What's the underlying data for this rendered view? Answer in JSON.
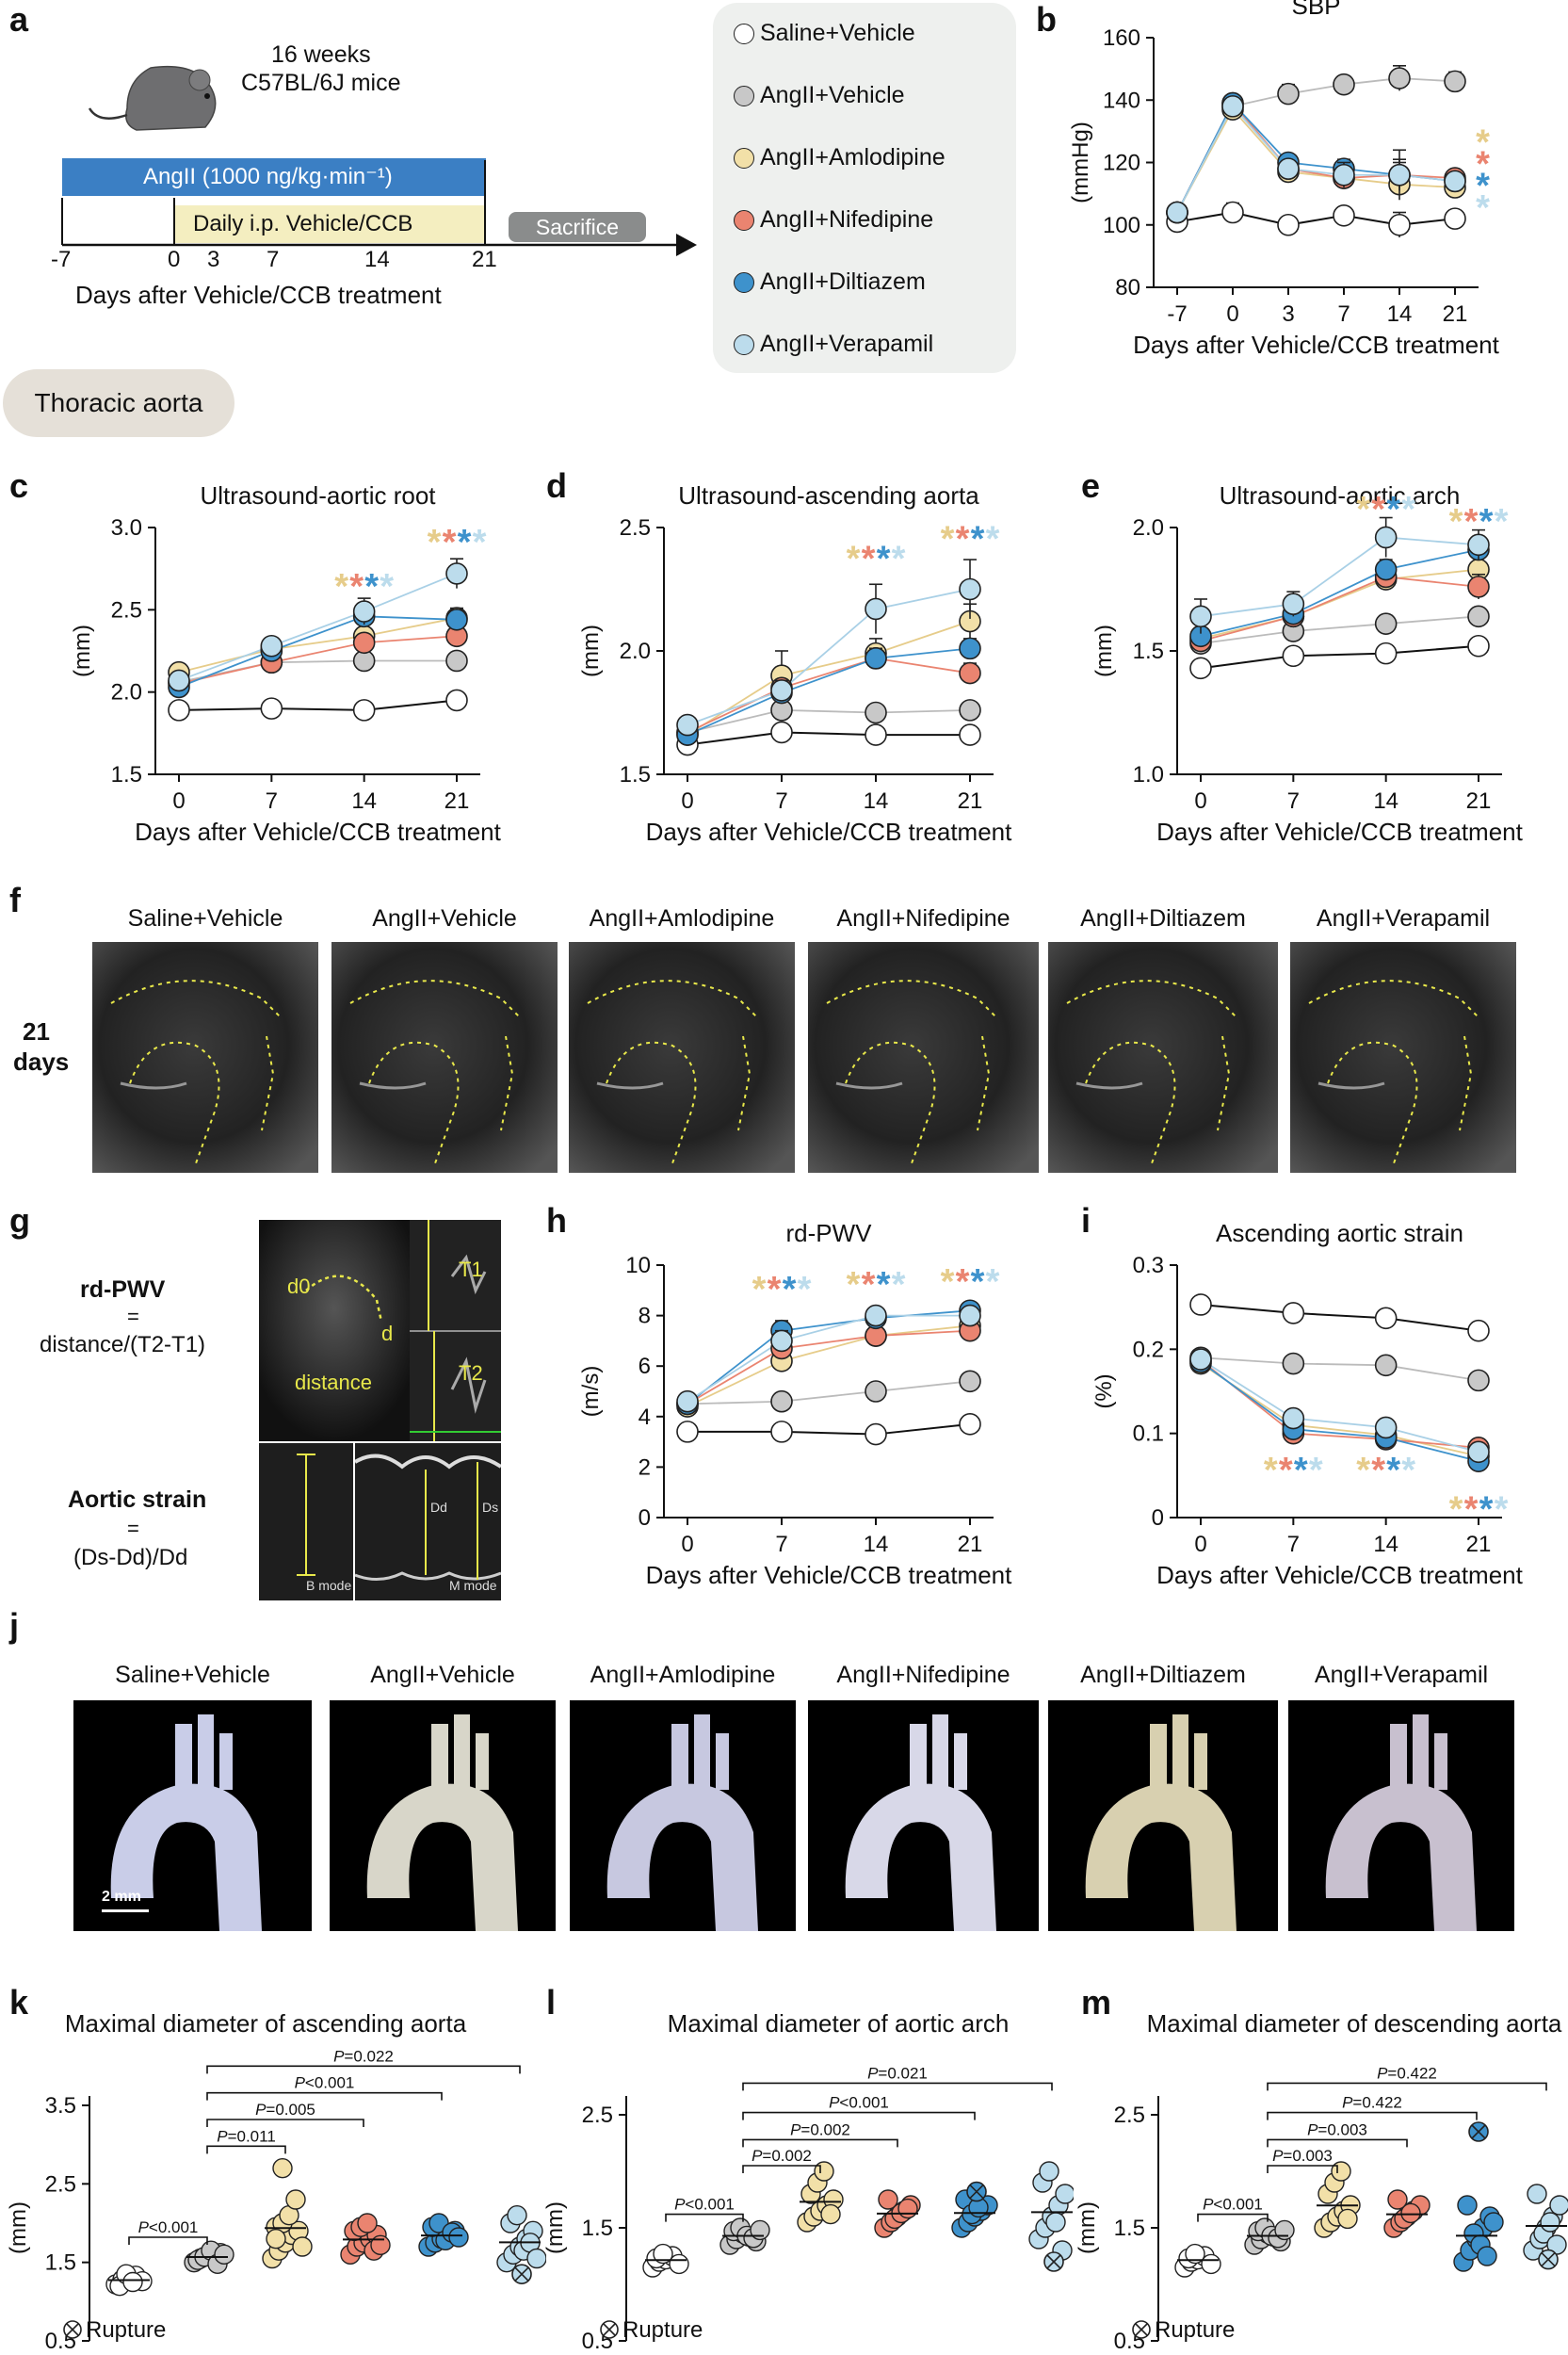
{
  "labels": {
    "a": "a",
    "b": "b",
    "c": "c",
    "d": "d",
    "e": "e",
    "f": "f",
    "g": "g",
    "h": "h",
    "i": "i",
    "j": "j",
    "k": "k",
    "l": "l",
    "m": "m"
  },
  "panel_a": {
    "mice_line1": "16 weeks",
    "mice_line2": "C57BL/6J mice",
    "angii_bar": "AngII (1000 ng/kg·min⁻¹)",
    "daily_bar": "Daily i.p. Vehicle/CCB",
    "sacrifice": "Sacrifice",
    "ticks": [
      "-7",
      "0",
      "3",
      "7",
      "14",
      "21"
    ],
    "xlabel": "Days after Vehicle/CCB treatment",
    "section": "Thoracic aorta"
  },
  "groups": [
    {
      "name": "Saline+Vehicle",
      "color": "#ffffff"
    },
    {
      "name": "AngII+Vehicle",
      "color": "#c8c8c8"
    },
    {
      "name": "AngII+Amlodipine",
      "color": "#f2e0a8"
    },
    {
      "name": "AngII+Nifedipine",
      "color": "#ea8470"
    },
    {
      "name": "AngII+Diltiazem",
      "color": "#3e92cc"
    },
    {
      "name": "AngII+Verapamil",
      "color": "#bcdcec"
    }
  ],
  "star_colors": [
    "#e6cc8a",
    "#ea8470",
    "#3e92cc",
    "#bcdcec"
  ],
  "chart_data": [
    {
      "id": "b",
      "type": "line",
      "title": "SBP",
      "ylabel": "(mmHg)",
      "xlabel": "Days after Vehicle/CCB treatment",
      "categories": [
        "-7",
        "0",
        "3",
        "7",
        "14",
        "21"
      ],
      "ylim": [
        80,
        160
      ],
      "yticks": [
        80,
        100,
        120,
        140,
        160
      ],
      "series": [
        [
          101,
          104,
          100,
          103,
          100,
          102
        ],
        [
          104,
          138,
          142,
          145,
          147,
          146
        ],
        [
          104,
          137,
          117,
          115,
          113,
          112
        ],
        [
          104,
          139,
          118,
          115,
          116,
          115
        ],
        [
          104,
          139,
          120,
          118,
          116,
          114
        ],
        [
          104,
          138,
          118,
          116,
          116,
          114
        ]
      ],
      "err": [
        [
          2,
          3,
          1,
          2,
          4,
          2
        ],
        [
          2,
          2,
          3,
          2,
          4,
          3
        ],
        [
          2,
          3,
          2,
          2,
          2,
          2
        ],
        [
          2,
          2,
          3,
          2,
          5,
          2
        ],
        [
          2,
          2,
          2,
          3,
          8,
          2
        ],
        [
          2,
          2,
          2,
          4,
          4,
          2
        ]
      ],
      "stars": [
        {
          "x": 5.5,
          "y": 127,
          "c": [
            0
          ]
        },
        {
          "x": 5.5,
          "y": 120,
          "c": [
            1
          ]
        },
        {
          "x": 5.5,
          "y": 113,
          "c": [
            2
          ]
        },
        {
          "x": 5.5,
          "y": 106,
          "c": [
            3
          ]
        }
      ]
    },
    {
      "id": "c",
      "type": "line",
      "title": "Ultrasound-aortic root",
      "ylabel": "(mm)",
      "xlabel": "Days after Vehicle/CCB treatment",
      "categories": [
        "0",
        "7",
        "14",
        "21"
      ],
      "ylim": [
        1.5,
        3.0
      ],
      "yticks": [
        "1.5",
        "2.0",
        "2.5",
        "3.0"
      ],
      "series": [
        [
          1.89,
          1.9,
          1.89,
          1.95
        ],
        [
          2.06,
          2.18,
          2.19,
          2.19
        ],
        [
          2.12,
          2.26,
          2.34,
          2.45
        ],
        [
          2.05,
          2.18,
          2.3,
          2.34
        ],
        [
          2.03,
          2.25,
          2.46,
          2.44
        ],
        [
          2.07,
          2.28,
          2.49,
          2.72
        ]
      ],
      "err": [
        [
          0,
          0,
          0,
          0
        ],
        [
          0.02,
          0.03,
          0.03,
          0.03
        ],
        [
          0.03,
          0.04,
          0.05,
          0.06
        ],
        [
          0.03,
          0.04,
          0.05,
          0.05
        ],
        [
          0.03,
          0.04,
          0.05,
          0.06
        ],
        [
          0.03,
          0.05,
          0.08,
          0.09
        ]
      ],
      "stars": [
        {
          "x": 2,
          "y": 2.65,
          "c": [
            0,
            1,
            2,
            3
          ]
        },
        {
          "x": 3,
          "y": 2.92,
          "c": [
            0,
            1,
            2,
            3
          ]
        }
      ]
    },
    {
      "id": "d",
      "type": "line",
      "title": "Ultrasound-ascending aorta",
      "ylabel": "(mm)",
      "xlabel": "Days after Vehicle/CCB treatment",
      "categories": [
        "0",
        "7",
        "14",
        "21"
      ],
      "ylim": [
        1.5,
        2.5
      ],
      "yticks": [
        "1.5",
        "2.0",
        "2.5"
      ],
      "series": [
        [
          1.62,
          1.67,
          1.66,
          1.66
        ],
        [
          1.67,
          1.76,
          1.75,
          1.76
        ],
        [
          1.66,
          1.9,
          1.99,
          2.12
        ],
        [
          1.67,
          1.85,
          1.97,
          1.91
        ],
        [
          1.66,
          1.83,
          1.97,
          2.01
        ],
        [
          1.7,
          1.84,
          2.17,
          2.25
        ]
      ],
      "err": [
        [
          0.01,
          0.01,
          0.01,
          0.01
        ],
        [
          0.02,
          0.02,
          0.02,
          0.02
        ],
        [
          0.03,
          0.1,
          0.06,
          0.07
        ],
        [
          0.02,
          0.03,
          0.04,
          0.04
        ],
        [
          0.02,
          0.04,
          0.04,
          0.04
        ],
        [
          0.03,
          0.04,
          0.1,
          0.12
        ]
      ],
      "stars": [
        {
          "x": 2,
          "y": 2.38,
          "c": [
            0,
            1,
            2,
            3
          ]
        },
        {
          "x": 3,
          "y": 2.46,
          "c": [
            0,
            1,
            2,
            3
          ]
        }
      ]
    },
    {
      "id": "e",
      "type": "line",
      "title": "Ultrasound-aortic arch",
      "ylabel": "(mm)",
      "xlabel": "Days after Vehicle/CCB treatment",
      "categories": [
        "0",
        "7",
        "14",
        "21"
      ],
      "ylim": [
        1.0,
        2.0
      ],
      "yticks": [
        "1.0",
        "1.5",
        "2.0"
      ],
      "series": [
        [
          1.43,
          1.48,
          1.49,
          1.52
        ],
        [
          1.53,
          1.58,
          1.61,
          1.64
        ],
        [
          1.55,
          1.64,
          1.79,
          1.83
        ],
        [
          1.54,
          1.64,
          1.8,
          1.76
        ],
        [
          1.56,
          1.65,
          1.83,
          1.91
        ],
        [
          1.64,
          1.69,
          1.96,
          1.93
        ]
      ],
      "err": [
        [
          0.01,
          0.01,
          0.01,
          0.01
        ],
        [
          0.02,
          0.02,
          0.02,
          0.02
        ],
        [
          0.02,
          0.03,
          0.04,
          0.05
        ],
        [
          0.02,
          0.03,
          0.04,
          0.05
        ],
        [
          0.02,
          0.03,
          0.04,
          0.04
        ],
        [
          0.07,
          0.05,
          0.08,
          0.06
        ]
      ],
      "stars": [
        {
          "x": 2,
          "y": 2.08,
          "c": [
            0,
            1,
            2,
            3
          ]
        },
        {
          "x": 3,
          "y": 2.03,
          "c": [
            0,
            1,
            2,
            3
          ]
        }
      ]
    },
    {
      "id": "h",
      "type": "line",
      "title": "rd-PWV",
      "ylabel": "(m/s)",
      "xlabel": "Days after Vehicle/CCB treatment",
      "categories": [
        "0",
        "7",
        "14",
        "21"
      ],
      "ylim": [
        0,
        10
      ],
      "yticks": [
        "0",
        "2",
        "4",
        "6",
        "8",
        "10"
      ],
      "series": [
        [
          3.4,
          3.4,
          3.3,
          3.7
        ],
        [
          4.5,
          4.6,
          5.0,
          5.4
        ],
        [
          4.4,
          6.2,
          7.2,
          7.6
        ],
        [
          4.5,
          6.7,
          7.2,
          7.4
        ],
        [
          4.5,
          7.4,
          7.9,
          8.2
        ],
        [
          4.6,
          7.0,
          8.0,
          8.0
        ]
      ],
      "err": [
        [
          0.1,
          0.1,
          0.1,
          0.1
        ],
        [
          0.2,
          0.2,
          0.2,
          0.2
        ],
        [
          0.2,
          0.4,
          0.4,
          0.3
        ],
        [
          0.2,
          0.4,
          0.3,
          0.3
        ],
        [
          0.2,
          0.4,
          0.3,
          0.3
        ],
        [
          0.2,
          0.4,
          0.3,
          0.3
        ]
      ],
      "stars": [
        {
          "x": 1,
          "y": 9.1,
          "c": [
            0,
            1,
            2,
            3
          ]
        },
        {
          "x": 2,
          "y": 9.3,
          "c": [
            0,
            1,
            2,
            3
          ]
        },
        {
          "x": 3,
          "y": 9.4,
          "c": [
            0,
            1,
            2,
            3
          ]
        }
      ]
    },
    {
      "id": "i",
      "type": "line",
      "title": "Ascending aortic strain",
      "ylabel": "(%)",
      "xlabel": "Days after Vehicle/CCB treatment",
      "categories": [
        "0",
        "7",
        "14",
        "21"
      ],
      "ylim": [
        0,
        0.3
      ],
      "yticks": [
        "0",
        "0.1",
        "0.2",
        "0.3"
      ],
      "series": [
        [
          0.253,
          0.243,
          0.237,
          0.222
        ],
        [
          0.19,
          0.183,
          0.181,
          0.163
        ],
        [
          0.183,
          0.11,
          0.098,
          0.073
        ],
        [
          0.187,
          0.1,
          0.093,
          0.083
        ],
        [
          0.185,
          0.105,
          0.095,
          0.067
        ],
        [
          0.188,
          0.118,
          0.107,
          0.078
        ]
      ],
      "err": [
        [
          0.004,
          0.004,
          0.004,
          0.004
        ],
        [
          0.005,
          0.005,
          0.005,
          0.005
        ],
        [
          0.006,
          0.006,
          0.006,
          0.008
        ],
        [
          0.006,
          0.006,
          0.006,
          0.008
        ],
        [
          0.006,
          0.006,
          0.006,
          0.01
        ],
        [
          0.006,
          0.006,
          0.006,
          0.008
        ]
      ],
      "stars": [
        {
          "x": 1,
          "y": 0.058,
          "c": [
            0,
            1,
            2,
            3
          ]
        },
        {
          "x": 2,
          "y": 0.058,
          "c": [
            0,
            1,
            2,
            3
          ]
        },
        {
          "x": 3,
          "y": 0.012,
          "c": [
            0,
            1,
            2,
            3
          ]
        }
      ]
    },
    {
      "id": "k",
      "type": "scatter",
      "title": "Maximal diameter of ascending aorta",
      "ylabel": "(mm)",
      "ylim": [
        0.5,
        3.5
      ],
      "yticks": [
        "0.5",
        "1.5",
        "2.5",
        "3.5"
      ],
      "groups": [
        [
          1.22,
          1.28,
          1.3,
          1.33,
          1.26,
          1.2,
          1.35,
          1.25
        ],
        [
          1.5,
          1.55,
          1.58,
          1.6,
          1.62,
          1.53,
          1.57,
          1.65,
          1.48,
          1.6
        ],
        [
          1.55,
          1.65,
          1.75,
          1.85,
          1.9,
          1.95,
          2.0,
          2.1,
          2.3,
          1.7,
          1.8,
          2.7
        ],
        [
          1.6,
          1.7,
          1.75,
          1.8,
          1.85,
          1.9,
          1.95,
          2.0,
          1.65,
          1.72
        ],
        [
          1.7,
          1.75,
          1.8,
          1.85,
          1.9,
          1.95,
          2.0,
          1.78,
          1.88,
          1.82
        ],
        [
          1.5,
          1.6,
          1.7,
          1.8,
          1.9,
          2.0,
          2.1,
          1.65,
          1.75,
          1.55
        ]
      ],
      "rupture": [
        {
          "g": 5,
          "y": 1.35
        }
      ],
      "pvalues": [
        {
          "a": 0,
          "b": 1,
          "t": "P<0.001",
          "y": 1.82
        },
        {
          "a": 1,
          "b": 2,
          "t": "P=0.011",
          "y": 2.98
        },
        {
          "a": 1,
          "b": 3,
          "t": "P=0.005",
          "y": 3.32
        },
        {
          "a": 1,
          "b": 4,
          "t": "P<0.001",
          "y": 3.66
        },
        {
          "a": 1,
          "b": 5,
          "t": "P=0.022",
          "y": 4.0
        }
      ],
      "legend": "Rupture"
    },
    {
      "id": "l",
      "type": "scatter",
      "title": "Maximal diameter of aortic arch",
      "ylabel": "(mm)",
      "ylim": [
        0.5,
        2.5
      ],
      "yticks": [
        "0.5",
        "1.5",
        "2.5"
      ],
      "groups": [
        [
          1.15,
          1.2,
          1.22,
          1.25,
          1.18,
          1.23,
          1.27
        ],
        [
          1.35,
          1.4,
          1.45,
          1.42,
          1.38,
          1.47,
          1.5,
          1.43,
          1.41,
          1.48
        ],
        [
          1.55,
          1.6,
          1.65,
          1.7,
          1.75,
          1.8,
          1.9,
          2.0,
          1.62
        ],
        [
          1.5,
          1.55,
          1.6,
          1.65,
          1.7,
          1.75,
          1.58,
          1.63,
          1.67
        ],
        [
          1.5,
          1.55,
          1.6,
          1.65,
          1.7,
          1.75,
          1.62,
          1.68
        ],
        [
          1.4,
          1.5,
          1.6,
          1.7,
          1.8,
          1.9,
          2.0,
          1.55,
          1.3
        ]
      ],
      "rupture": [
        {
          "g": 4,
          "y": 1.82
        },
        {
          "g": 5,
          "y": 1.2
        }
      ],
      "pvalues": [
        {
          "a": 0,
          "b": 1,
          "t": "P<0.001",
          "y": 1.62
        },
        {
          "a": 1,
          "b": 2,
          "t": "P=0.002",
          "y": 2.05
        },
        {
          "a": 1,
          "b": 3,
          "t": "P=0.002",
          "y": 2.28
        },
        {
          "a": 1,
          "b": 4,
          "t": "P<0.001",
          "y": 2.52
        },
        {
          "a": 1,
          "b": 5,
          "t": "P=0.021",
          "y": 2.78
        }
      ],
      "legend": "Rupture"
    },
    {
      "id": "m",
      "type": "scatter",
      "title": "Maximal diameter of descending aorta",
      "ylabel": "(mm)",
      "ylim": [
        0.5,
        2.5
      ],
      "yticks": [
        "0.5",
        "1.5",
        "2.5"
      ],
      "groups": [
        [
          1.15,
          1.2,
          1.22,
          1.25,
          1.18,
          1.23,
          1.27
        ],
        [
          1.35,
          1.4,
          1.45,
          1.42,
          1.38,
          1.47,
          1.5,
          1.43,
          1.41,
          1.48
        ],
        [
          1.5,
          1.55,
          1.6,
          1.65,
          1.7,
          1.8,
          1.9,
          2.0,
          1.58
        ],
        [
          1.5,
          1.55,
          1.6,
          1.65,
          1.7,
          1.75,
          1.58,
          1.63
        ],
        [
          1.2,
          1.3,
          1.4,
          1.5,
          1.6,
          1.7,
          1.45,
          1.35,
          1.25,
          1.55
        ],
        [
          1.3,
          1.4,
          1.5,
          1.6,
          1.7,
          1.8,
          1.45,
          1.55,
          1.35
        ]
      ],
      "rupture": [
        {
          "g": 4,
          "y": 2.35
        },
        {
          "g": 5,
          "y": 1.22
        }
      ],
      "pvalues": [
        {
          "a": 0,
          "b": 1,
          "t": "P<0.001",
          "y": 1.62
        },
        {
          "a": 1,
          "b": 2,
          "t": "P=0.003",
          "y": 2.05
        },
        {
          "a": 1,
          "b": 3,
          "t": "P=0.003",
          "y": 2.28
        },
        {
          "a": 1,
          "b": 4,
          "t": "P=0.422",
          "y": 2.52
        },
        {
          "a": 1,
          "b": 5,
          "t": "P=0.422",
          "y": 2.78
        }
      ],
      "legend": "Rupture"
    }
  ],
  "panel_f": {
    "side_label_1": "21",
    "side_label_2": "days",
    "captions": [
      "Saline+Vehicle",
      "AngII+Vehicle",
      "AngII+Amlodipine",
      "AngII+Nifedipine",
      "AngII+Diltiazem",
      "AngII+Verapamil"
    ]
  },
  "panel_g": {
    "pwv_title": "rd-PWV",
    "pwv_eq": "=",
    "pwv_formula": "distance/(T2-T1)",
    "strain_title": "Aortic strain",
    "strain_eq": "=",
    "strain_formula": "(Ds-Dd)/Dd",
    "img_d0": "d0",
    "img_d": "d",
    "img_distance": "distance",
    "img_t1": "T1",
    "img_t2": "T2",
    "img_bmode": "B mode",
    "img_mmode": "M mode",
    "img_dd": "Dd",
    "img_ds": "Ds"
  },
  "panel_j": {
    "captions": [
      "Saline+Vehicle",
      "AngII+Vehicle",
      "AngII+Amlodipine",
      "AngII+Nifedipine",
      "AngII+Diltiazem",
      "AngII+Verapamil"
    ],
    "scale": "2 mm"
  }
}
